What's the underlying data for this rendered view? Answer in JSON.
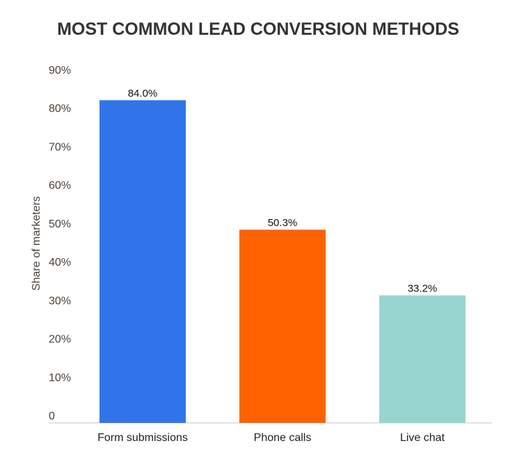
{
  "chart_data": {
    "type": "bar",
    "title": "MOST COMMON LEAD CONVERSION METHODS",
    "xlabel": "",
    "ylabel": "Share of marketers",
    "categories": [
      "Form submissions",
      "Phone calls",
      "Live chat"
    ],
    "values": [
      84.0,
      50.3,
      33.2
    ],
    "data_labels": [
      "84.0%",
      "50.3%",
      "33.2%"
    ],
    "colors": [
      "#3174ea",
      "#ff6200",
      "#99d5d0"
    ],
    "ylim": [
      0,
      90
    ],
    "yticks": [
      0,
      10,
      20,
      30,
      40,
      50,
      60,
      70,
      80,
      90
    ],
    "ytick_labels": [
      "0",
      "10%",
      "20%",
      "30%",
      "40%",
      "50%",
      "60%",
      "70%",
      "80%",
      "90%"
    ],
    "grid": false,
    "legend": "none"
  }
}
